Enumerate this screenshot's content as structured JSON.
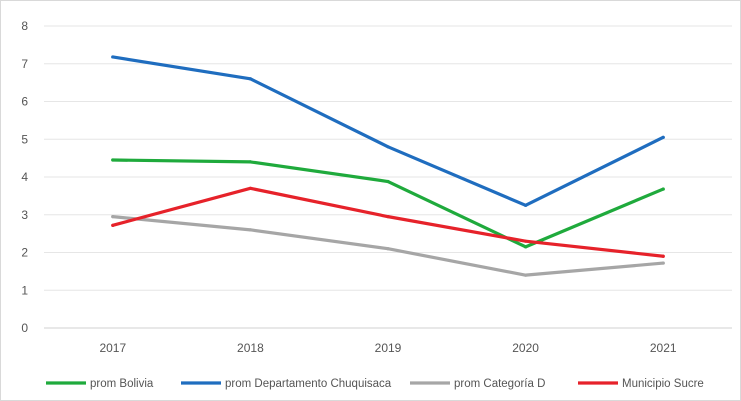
{
  "chart_data": {
    "type": "line",
    "categories": [
      "2017",
      "2018",
      "2019",
      "2020",
      "2021"
    ],
    "ylim": [
      0,
      8
    ],
    "yticks": [
      0,
      1,
      2,
      3,
      4,
      5,
      6,
      7,
      8
    ],
    "grid": "horizontal",
    "legend_position": "bottom",
    "series": [
      {
        "key": "bolivia",
        "name": "prom Bolivia",
        "color": "#1faa3c",
        "values": [
          4.45,
          4.4,
          3.88,
          2.15,
          3.68
        ]
      },
      {
        "key": "chuquisaca",
        "name": "prom Departamento Chuquisaca",
        "color": "#1f6dbf",
        "values": [
          7.18,
          6.6,
          4.8,
          3.25,
          5.05
        ]
      },
      {
        "key": "categoria",
        "name": "prom Categoría D",
        "color": "#a6a6a6",
        "values": [
          2.95,
          2.6,
          2.1,
          1.4,
          1.72
        ]
      },
      {
        "key": "sucre",
        "name": "Municipio Sucre",
        "color": "#e6222a",
        "values": [
          2.72,
          3.7,
          2.95,
          2.3,
          1.9
        ]
      }
    ]
  }
}
